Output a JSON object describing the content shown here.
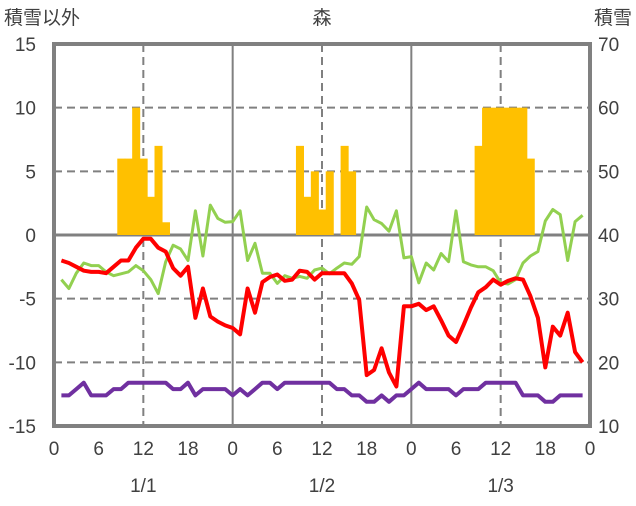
{
  "chart_data": {
    "type": "bar+line",
    "title": "森",
    "ylabel_left": "積雪以外",
    "ylabel_right": "積雪",
    "ylim_left": [
      -15,
      15
    ],
    "ylim_right": [
      10,
      70
    ],
    "yticks_left": [
      "15",
      "10",
      "5",
      "0",
      "-5",
      "-10",
      "-15"
    ],
    "yticks_right": [
      "70",
      "60",
      "50",
      "40",
      "30",
      "20",
      "10"
    ],
    "xlim_hours": [
      0,
      72
    ],
    "xtick_labels": [
      "0",
      "6",
      "12",
      "18",
      "0",
      "6",
      "12",
      "18",
      "0",
      "6",
      "12",
      "18",
      "0"
    ],
    "date_labels": [
      "1/1",
      "1/2",
      "1/3"
    ],
    "grid": "dashed",
    "colors": {
      "snow": "#ffc000",
      "red": "#ff0000",
      "green": "#92d050",
      "purple": "#7030a0",
      "frame": "#808080"
    },
    "bars": {
      "name": "snowfall",
      "hours": [
        9,
        10,
        11,
        12,
        13,
        14,
        15,
        33,
        34,
        35,
        36,
        37,
        39,
        40,
        57,
        58,
        59,
        60,
        61,
        62,
        63,
        64
      ],
      "values": [
        6,
        6,
        10,
        6,
        3,
        7,
        1,
        7,
        3,
        5,
        2,
        5,
        7,
        5,
        7,
        10,
        10,
        10,
        10,
        10,
        10,
        6
      ]
    },
    "series": [
      {
        "name": "red",
        "axis": "left",
        "values": [
          -2.0,
          -2.2,
          -2.5,
          -2.8,
          -2.9,
          -2.9,
          -3.0,
          -2.5,
          -2.0,
          -2.0,
          -1.0,
          -0.3,
          -0.3,
          -1.0,
          -1.3,
          -2.6,
          -3.2,
          -2.5,
          -6.5,
          -4.2,
          -6.4,
          -6.8,
          -7.1,
          -7.3,
          -7.8,
          -4.2,
          -6.1,
          -3.7,
          -3.3,
          -3.1,
          -3.6,
          -3.5,
          -2.8,
          -2.9,
          -3.5,
          -3.0,
          -3.0,
          -3.0,
          -3.0,
          -3.8,
          -5.1,
          -11.0,
          -10.6,
          -8.9,
          -10.8,
          -11.9,
          -5.6,
          -5.6,
          -5.4,
          -5.9,
          -5.6,
          -6.7,
          -7.9,
          -8.4,
          -7.1,
          -5.7,
          -4.5,
          -4.1,
          -3.5,
          -3.9,
          -3.6,
          -3.4,
          -3.5,
          -4.8,
          -6.5,
          -10.4,
          -7.2,
          -7.9,
          -6.1,
          -9.2,
          -10.0
        ]
      },
      {
        "name": "green",
        "axis": "left",
        "values": [
          -3.5,
          -4.2,
          -3.0,
          -2.2,
          -2.4,
          -2.4,
          -2.9,
          -3.2,
          -3.05,
          -2.9,
          -2.4,
          -2.8,
          -3.5,
          -4.6,
          -2.1,
          -0.8,
          -1.1,
          -2.0,
          1.9,
          -1.65,
          2.35,
          1.3,
          1.0,
          1.05,
          1.9,
          -2.0,
          -0.65,
          -3.0,
          -3.0,
          -3.8,
          -3.2,
          -3.4,
          -3.25,
          -3.4,
          -2.75,
          -2.6,
          -3.05,
          -2.6,
          -2.2,
          -2.3,
          -1.7,
          2.2,
          1.2,
          0.9,
          0.3,
          1.9,
          -1.8,
          -1.7,
          -3.75,
          -2.2,
          -2.75,
          -1.45,
          -2.1,
          1.9,
          -2.1,
          -2.35,
          -2.5,
          -2.5,
          -2.8,
          -3.75,
          -3.85,
          -3.5,
          -2.2,
          -1.65,
          -1.3,
          1.1,
          2.0,
          1.6,
          -2.0,
          1.05,
          1.55
        ]
      },
      {
        "name": "purple",
        "axis": "left",
        "values": [
          -12.6,
          -12.6,
          -12.1,
          -11.6,
          -12.6,
          -12.6,
          -12.6,
          -12.1,
          -12.1,
          -11.6,
          -11.6,
          -11.6,
          -11.6,
          -11.6,
          -11.6,
          -12.1,
          -12.1,
          -11.6,
          -12.6,
          -12.1,
          -12.1,
          -12.1,
          -12.1,
          -12.6,
          -12.1,
          -12.6,
          -12.1,
          -11.6,
          -11.6,
          -12.1,
          -11.6,
          -11.6,
          -11.6,
          -11.6,
          -11.6,
          -11.6,
          -11.6,
          -12.1,
          -12.1,
          -12.6,
          -12.6,
          -13.1,
          -13.1,
          -12.6,
          -13.1,
          -12.6,
          -12.6,
          -12.1,
          -11.6,
          -12.1,
          -12.1,
          -12.1,
          -12.1,
          -12.6,
          -12.1,
          -12.1,
          -12.1,
          -11.6,
          -11.6,
          -11.6,
          -11.6,
          -11.6,
          -12.6,
          -12.6,
          -12.6,
          -13.1,
          -13.1,
          -12.6,
          -12.6,
          -12.6,
          -12.6
        ]
      }
    ]
  }
}
